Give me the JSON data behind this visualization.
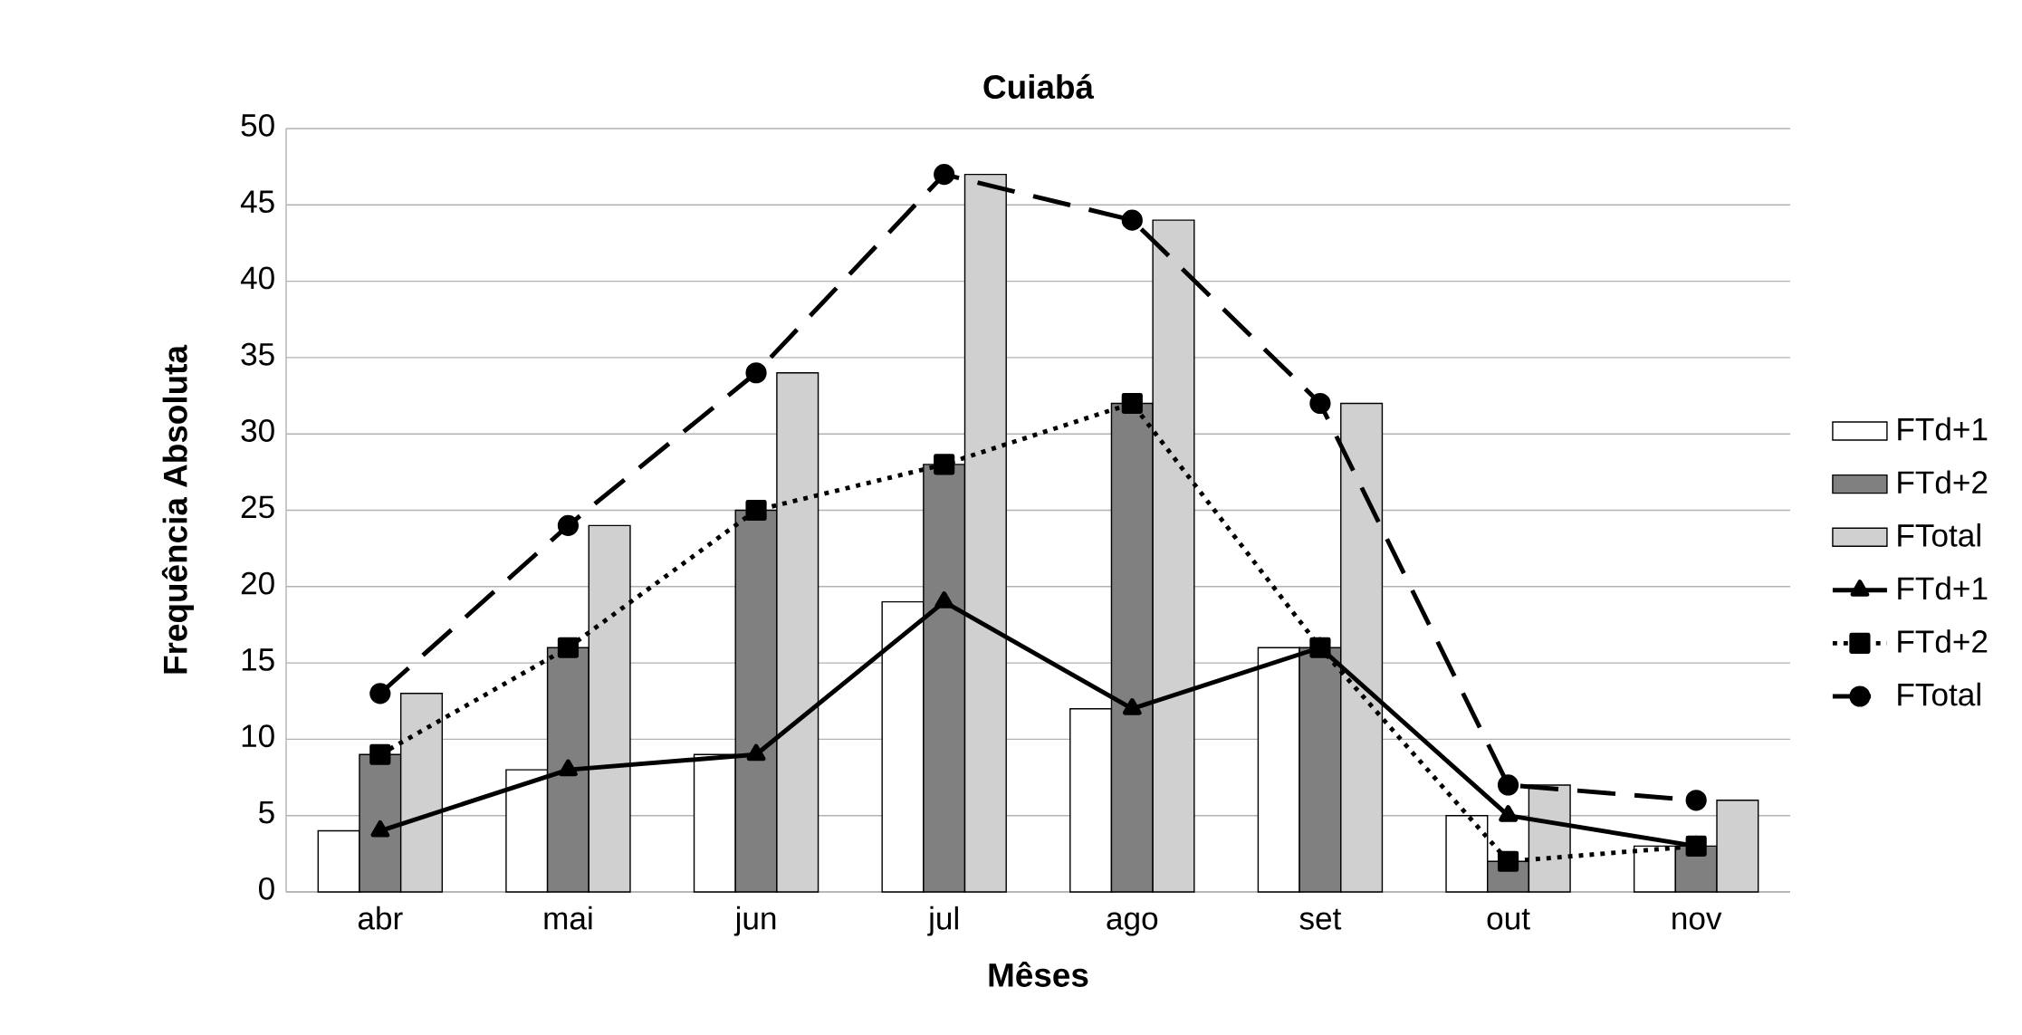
{
  "chart_data": {
    "type": "bar",
    "title": "Cuiabá",
    "xlabel": "Mêses",
    "ylabel": "Frequência Absoluta",
    "categories": [
      "abr",
      "mai",
      "jun",
      "jul",
      "ago",
      "set",
      "out",
      "nov"
    ],
    "series": [
      {
        "name": "FTd+1",
        "color": "#ffffff",
        "values": [
          4,
          8,
          9,
          19,
          12,
          16,
          5,
          3
        ]
      },
      {
        "name": "FTd+2",
        "color": "#808080",
        "values": [
          9,
          16,
          25,
          28,
          32,
          16,
          2,
          3
        ]
      },
      {
        "name": "FTotal",
        "color": "#d0d0d0",
        "values": [
          13,
          24,
          34,
          47,
          44,
          32,
          7,
          6
        ]
      },
      {
        "name": "FTd+1",
        "type": "line",
        "color": "#000000",
        "marker": "triangle",
        "line_style": "solid",
        "values": [
          4,
          8,
          9,
          19,
          12,
          16,
          5,
          3
        ]
      },
      {
        "name": "FTd+2",
        "type": "line",
        "color": "#000000",
        "marker": "square",
        "line_style": "dotted",
        "values": [
          9,
          16,
          25,
          28,
          32,
          16,
          2,
          3
        ]
      },
      {
        "name": "FTotal",
        "type": "line",
        "color": "#000000",
        "marker": "circle",
        "line_style": "dashed",
        "values": [
          13,
          24,
          34,
          47,
          44,
          32,
          7,
          6
        ]
      }
    ],
    "ylim": [
      0,
      50
    ],
    "yticks": [
      0,
      5,
      10,
      15,
      20,
      25,
      30,
      35,
      40,
      45,
      50
    ],
    "grid": "y",
    "legend": "right"
  }
}
